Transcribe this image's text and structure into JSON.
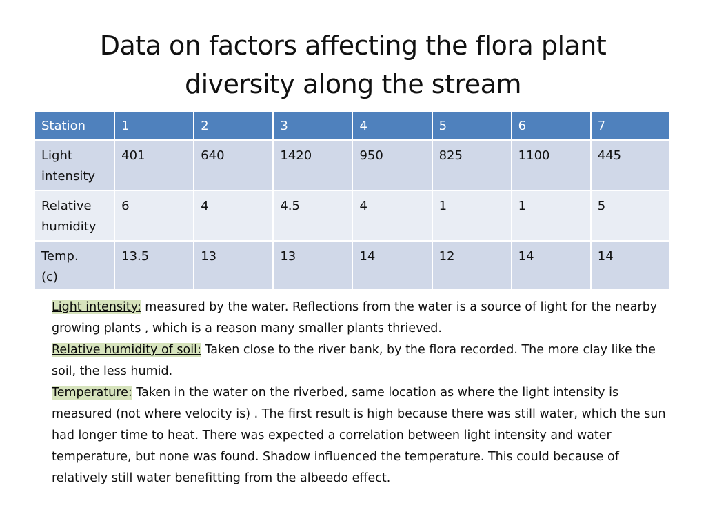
{
  "title": {
    "line1": "Data on factors affecting the flora plant",
    "line2": "diversity along the stream"
  },
  "table": {
    "headers": [
      "Station",
      "1",
      "2",
      "3",
      "4",
      "5",
      "6",
      "7"
    ],
    "rows": [
      {
        "label_line1": "Light",
        "label_line2": "intensity",
        "values": [
          "401",
          "640",
          "1420",
          "950",
          "825",
          "1100",
          "445"
        ]
      },
      {
        "label_line1": "Relative",
        "label_line2": "humidity",
        "values": [
          "6",
          "4",
          "4.5",
          "4",
          "1",
          "1",
          "5"
        ]
      },
      {
        "label_line1": "Temp.",
        "label_line2": "(c)",
        "values": [
          "13.5",
          "13",
          "13",
          "14",
          "12",
          "14",
          "14"
        ]
      }
    ]
  },
  "notes": [
    {
      "term": "Light intensity:",
      "text": "  measured  by  the water. Reflections from the water is a source of light for the nearby growing plants , which is a reason many smaller plants thrieved."
    },
    {
      "term": "Relative humidity of soil:",
      "text": " Taken close to the river bank, by the flora recorded. The more clay like the soil, the less humid."
    },
    {
      "term": "Temperature:",
      "text": " Taken in the water  on the riverbed, same location as where the light intensity is measured (not where velocity is) . The first result is high because there was still water, which the sun had longer time to heat. There was expected a correlation between light intensity and water temperature, but none was found. Shadow influenced  the temperature. This could because of relatively still water benefitting from the  albeedo effect."
    }
  ],
  "colors": {
    "header_bg": "#4f81bd",
    "row_odd_bg": "#d0d8e8",
    "row_even_bg": "#e9edf4",
    "term_highlight": "#d6e3bc"
  }
}
